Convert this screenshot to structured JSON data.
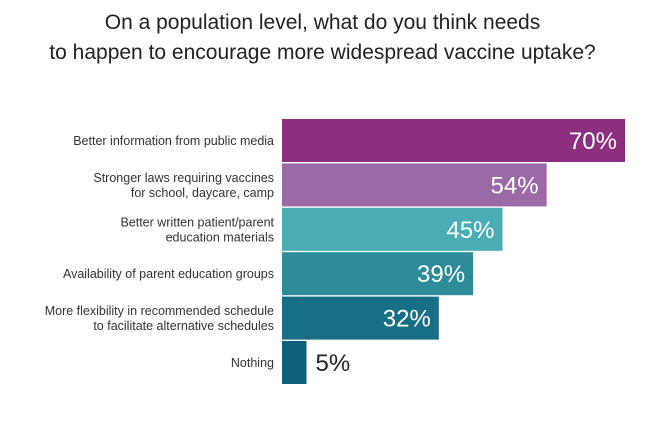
{
  "chart_data": {
    "type": "bar",
    "orientation": "horizontal",
    "title_lines": [
      "On a population level, what do you think needs",
      "to happen to encourage more widespread vaccine uptake?"
    ],
    "categories": [
      [
        "Better information from public media"
      ],
      [
        "Stronger laws requiring vaccines",
        "for school, daycare, camp"
      ],
      [
        "Better written patient/parent",
        "education materials"
      ],
      [
        "Availability of parent education groups"
      ],
      [
        "More flexibility in recommended schedule",
        "to facilitate alternative schedules"
      ],
      [
        "Nothing"
      ]
    ],
    "values": [
      70,
      54,
      45,
      39,
      32,
      5
    ],
    "value_labels": [
      "70%",
      "54%",
      "45%",
      "39%",
      "32%",
      "5%"
    ],
    "unit": "%",
    "xlim": [
      0,
      100
    ],
    "grid": false,
    "legend": "none",
    "colors": [
      "#8c2f7f",
      "#9b6aa6",
      "#4aadb6",
      "#2e8c98",
      "#166f85",
      "#0f5f7c"
    ],
    "value_label_colors": [
      "#ffffff",
      "#ffffff",
      "#ffffff",
      "#ffffff",
      "#ffffff",
      "#222222"
    ]
  }
}
